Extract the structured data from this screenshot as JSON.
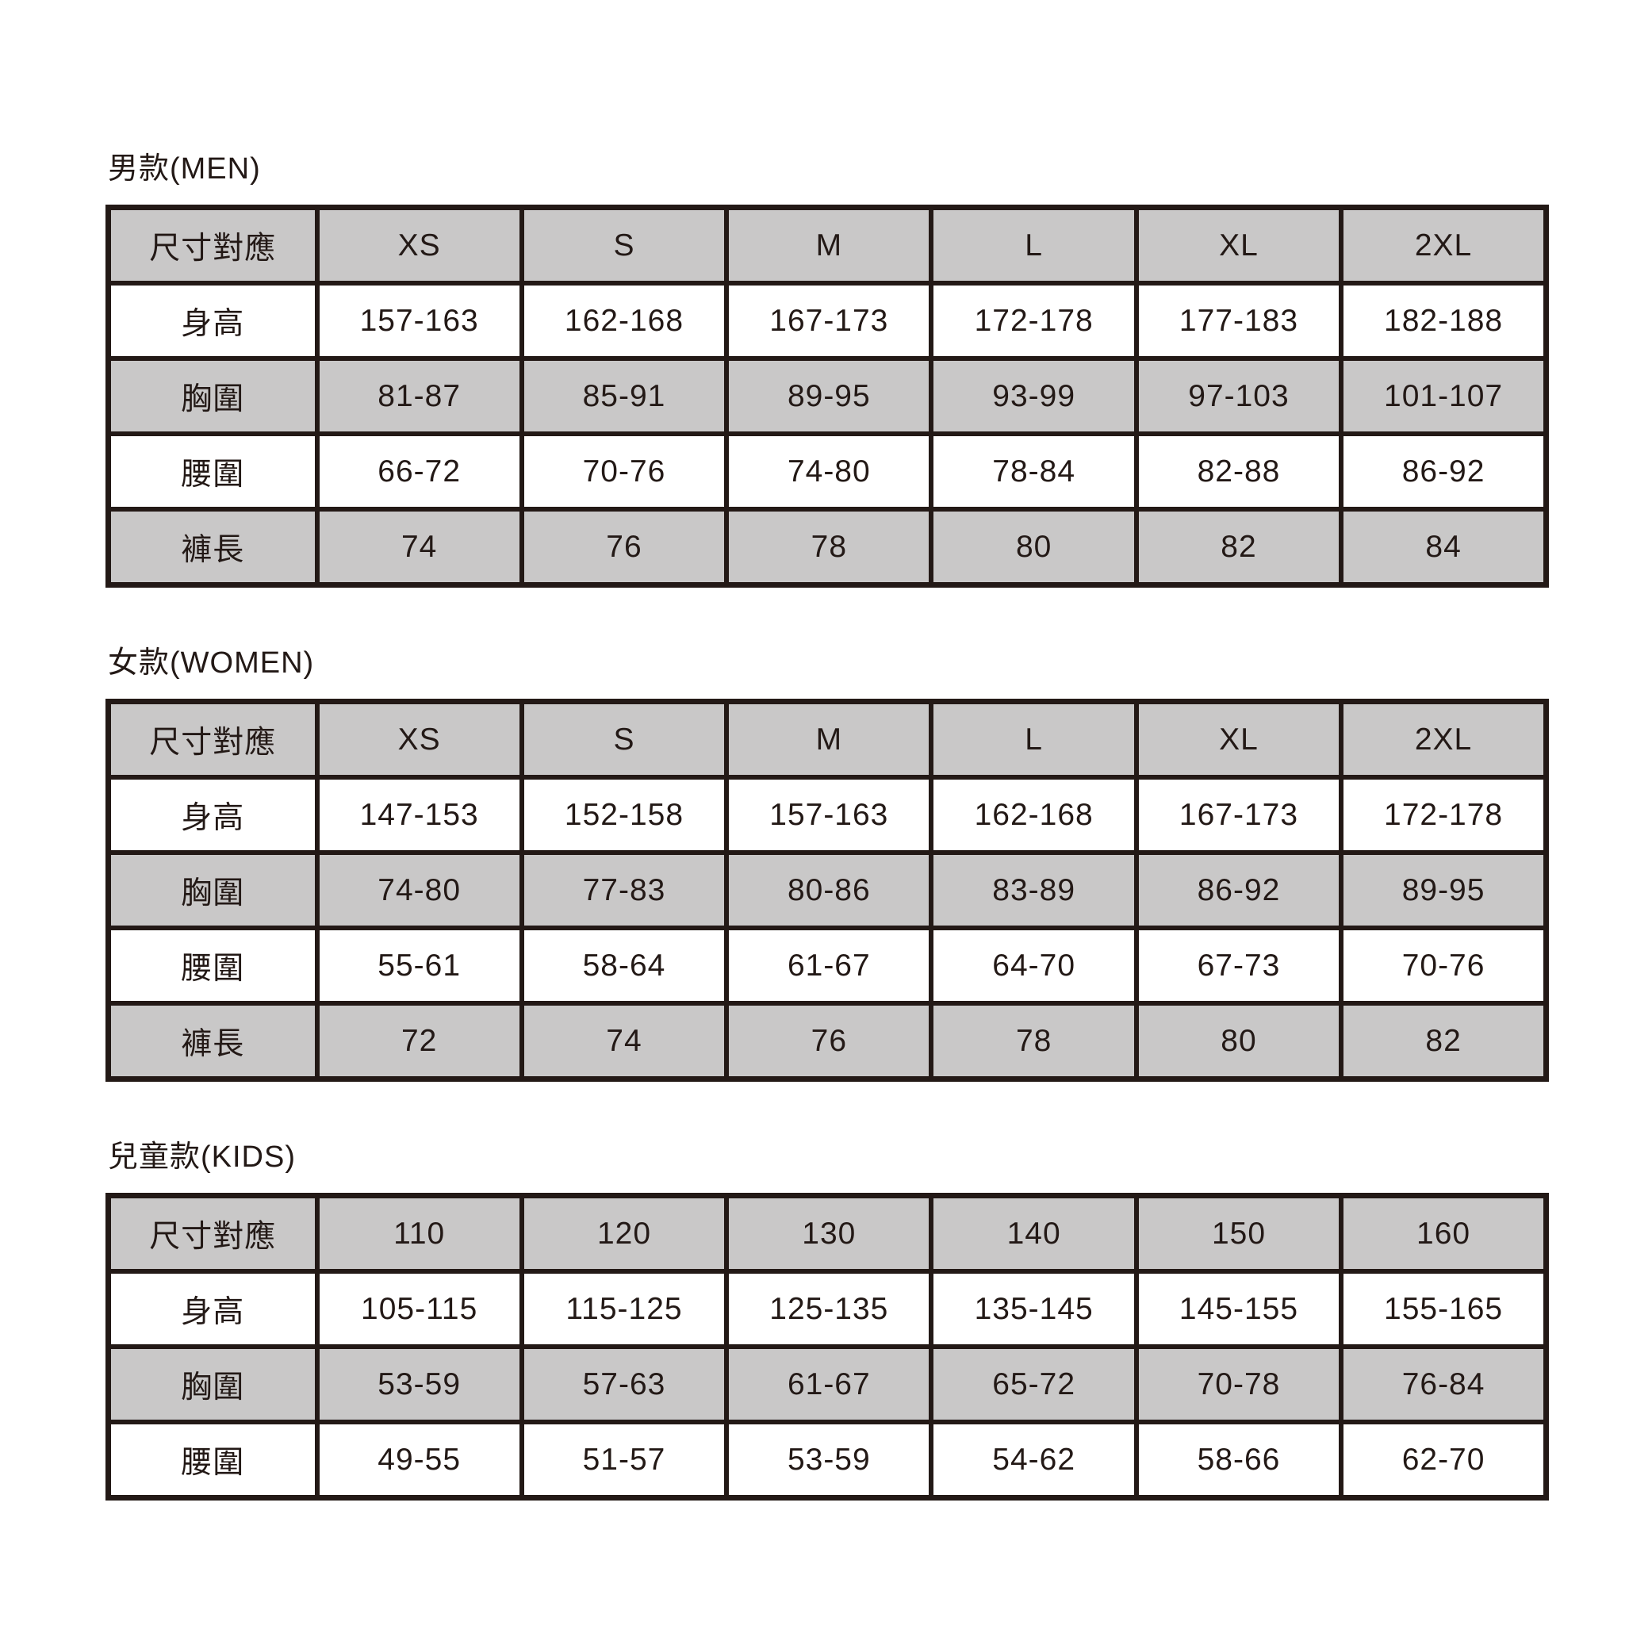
{
  "colors": {
    "ink": "#231916",
    "table_border": "#231916",
    "header_row_fill": "#c9c8c8",
    "alt_row_fill": "#ffffff",
    "page_background": "#ffffff"
  },
  "tables": [
    {
      "title": "男款(MEN)",
      "rows": [
        [
          "尺寸對應",
          "XS",
          "S",
          "M",
          "L",
          "XL",
          "2XL"
        ],
        [
          "身高",
          "157-163",
          "162-168",
          "167-173",
          "172-178",
          "177-183",
          "182-188"
        ],
        [
          "胸圍",
          "81-87",
          "85-91",
          "89-95",
          "93-99",
          "97-103",
          "101-107"
        ],
        [
          "腰圍",
          "66-72",
          "70-76",
          "74-80",
          "78-84",
          "82-88",
          "86-92"
        ],
        [
          "褲長",
          "74",
          "76",
          "78",
          "80",
          "82",
          "84"
        ]
      ]
    },
    {
      "title": "女款(WOMEN)",
      "rows": [
        [
          "尺寸對應",
          "XS",
          "S",
          "M",
          "L",
          "XL",
          "2XL"
        ],
        [
          "身高",
          "147-153",
          "152-158",
          "157-163",
          "162-168",
          "167-173",
          "172-178"
        ],
        [
          "胸圍",
          "74-80",
          "77-83",
          "80-86",
          "83-89",
          "86-92",
          "89-95"
        ],
        [
          "腰圍",
          "55-61",
          "58-64",
          "61-67",
          "64-70",
          "67-73",
          "70-76"
        ],
        [
          "褲長",
          "72",
          "74",
          "76",
          "78",
          "80",
          "82"
        ]
      ]
    },
    {
      "title": "兒童款(KIDS)",
      "rows": [
        [
          "尺寸對應",
          "110",
          "120",
          "130",
          "140",
          "150",
          "160"
        ],
        [
          "身高",
          "105-115",
          "115-125",
          "125-135",
          "135-145",
          "145-155",
          "155-165"
        ],
        [
          "胸圍",
          "53-59",
          "57-63",
          "61-67",
          "65-72",
          "70-78",
          "76-84"
        ],
        [
          "腰圍",
          "49-55",
          "51-57",
          "53-59",
          "54-62",
          "58-66",
          "62-70"
        ]
      ]
    }
  ]
}
